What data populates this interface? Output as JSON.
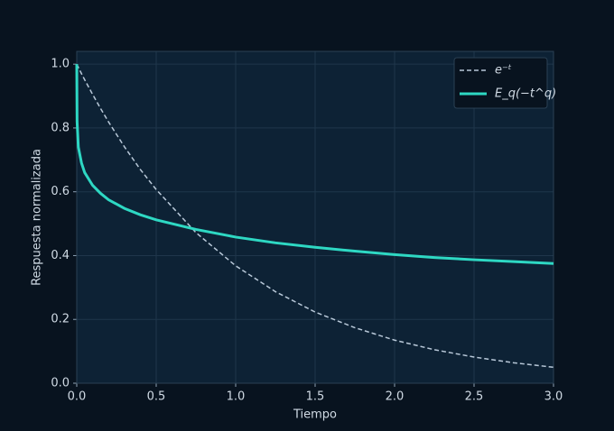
{
  "chart_data": {
    "type": "line",
    "xlabel": "Tiempo",
    "ylabel": "Respuesta normalizada",
    "x": [
      0,
      0.002,
      0.01,
      0.03,
      0.05,
      0.1,
      0.15,
      0.2,
      0.3,
      0.4,
      0.5,
      0.75,
      1.0,
      1.25,
      1.5,
      1.75,
      2.0,
      2.25,
      2.5,
      2.75,
      3.0
    ],
    "series": [
      {
        "name": "e⁻ᵗ",
        "color": "#b8c8d8",
        "dash": true,
        "width": 1.5,
        "values": [
          1.0,
          0.998,
          0.99,
          0.97,
          0.951,
          0.905,
          0.861,
          0.819,
          0.741,
          0.67,
          0.607,
          0.472,
          0.368,
          0.287,
          0.223,
          0.174,
          0.135,
          0.105,
          0.082,
          0.064,
          0.05
        ]
      },
      {
        "name": "E_q(−t^q)",
        "color": "#2ed8c3",
        "dash": false,
        "width": 3,
        "values": [
          1.0,
          0.82,
          0.74,
          0.69,
          0.66,
          0.62,
          0.595,
          0.575,
          0.548,
          0.528,
          0.512,
          0.482,
          0.458,
          0.44,
          0.426,
          0.414,
          0.403,
          0.394,
          0.387,
          0.381,
          0.375
        ]
      }
    ],
    "xlim": [
      0,
      3
    ],
    "ylim": [
      0,
      1.04
    ],
    "xticks": [
      {
        "value": 0,
        "label": "0.0"
      },
      0.5,
      {
        "value": 1,
        "label": "1.0"
      },
      1.5,
      {
        "value": 2,
        "label": "2.0"
      },
      2.5,
      {
        "value": 3,
        "label": "3.0"
      }
    ],
    "yticks": [
      {
        "value": 0,
        "label": "0.0"
      },
      0.2,
      0.4,
      0.6,
      0.8,
      {
        "value": 1,
        "label": "1.0"
      }
    ],
    "grid": true,
    "legend": "upper-right"
  }
}
